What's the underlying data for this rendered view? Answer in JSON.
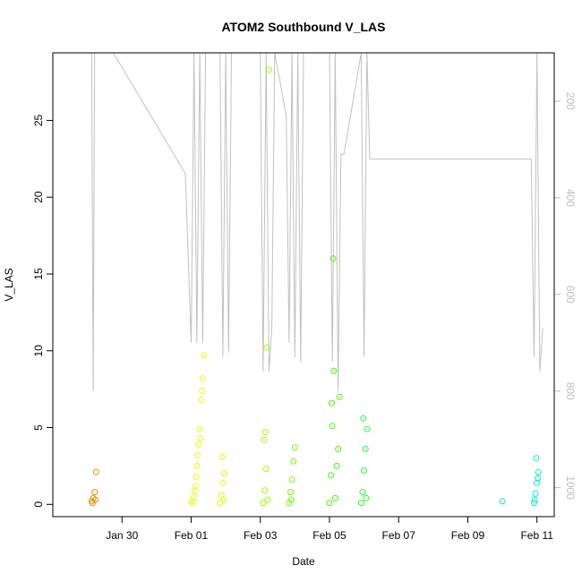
{
  "chart_data": {
    "type": "scatter",
    "title": "ATOM2 Southbound V_LAS",
    "xlabel": "Date",
    "ylabel": "V_LAS",
    "x_axis": {
      "type": "date",
      "ticks": [
        "Jan 30",
        "Feb 01",
        "Feb 03",
        "Feb 05",
        "Feb 07",
        "Feb 09",
        "Feb 11"
      ],
      "tick_values": [
        "2024-01-30",
        "2024-02-01",
        "2024-02-03",
        "2024-02-05",
        "2024-02-07",
        "2024-02-09",
        "2024-02-11"
      ],
      "xlim": [
        "2024-01-28T00:00",
        "2024-02-11T12:00"
      ]
    },
    "y_axis": {
      "ticks": [
        0,
        5,
        10,
        15,
        20,
        25
      ],
      "ylim": [
        -0.8,
        29.4
      ]
    },
    "y2_axis": {
      "ticks": [
        200,
        400,
        600,
        800,
        1000
      ],
      "range": [
        1060,
        100
      ],
      "color": "#bdbdbd"
    },
    "colors": {
      "series_start": "#f28a00",
      "series_mid": "#e6ff00",
      "series_green": "#26ff00",
      "series_end": "#00f0c8",
      "depth_line": "#c0c0c0"
    },
    "series": [
      {
        "color": "#f28a00",
        "points": [
          [
            "2024-01-29T03:00",
            0.2
          ],
          [
            "2024-01-29T04:00",
            0.4
          ],
          [
            "2024-01-29T05:00",
            0.8
          ],
          [
            "2024-01-29T06:00",
            2.1
          ],
          [
            "2024-01-29T03:30",
            0.1
          ],
          [
            "2024-01-29T05:30",
            0.3
          ]
        ]
      },
      {
        "color": "#e6ff00",
        "points": [
          [
            "2024-02-01T01:00",
            0.1
          ],
          [
            "2024-02-01T02:00",
            0.5
          ],
          [
            "2024-02-01T03:00",
            1.2
          ],
          [
            "2024-02-01T04:00",
            2.5
          ],
          [
            "2024-02-01T05:00",
            3.9
          ],
          [
            "2024-02-01T06:00",
            4.9
          ],
          [
            "2024-02-01T07:00",
            6.8
          ],
          [
            "2024-02-01T08:00",
            8.2
          ],
          [
            "2024-02-01T09:00",
            9.7
          ],
          [
            "2024-02-01T02:30",
            0.9
          ],
          [
            "2024-02-01T04:30",
            3.2
          ],
          [
            "2024-02-01T06:30",
            4.3
          ],
          [
            "2024-02-01T07:30",
            7.4
          ],
          [
            "2024-02-01T00:30",
            0.2
          ],
          [
            "2024-02-01T03:30",
            1.8
          ]
        ]
      },
      {
        "color": "#d2ff00",
        "points": [
          [
            "2024-02-01T20:00",
            0.1
          ],
          [
            "2024-02-01T21:00",
            0.6
          ],
          [
            "2024-02-01T22:00",
            1.4
          ],
          [
            "2024-02-01T23:00",
            2.0
          ],
          [
            "2024-02-01T21:30",
            3.1
          ],
          [
            "2024-02-01T22:30",
            0.3
          ]
        ]
      },
      {
        "color": "#9cff00",
        "points": [
          [
            "2024-02-03T02:00",
            0.1
          ],
          [
            "2024-02-03T03:00",
            0.9
          ],
          [
            "2024-02-03T04:00",
            2.3
          ],
          [
            "2024-02-03T02:30",
            4.2
          ],
          [
            "2024-02-03T03:30",
            4.7
          ],
          [
            "2024-02-03T05:00",
            0.3
          ],
          [
            "2024-02-03T06:00",
            28.3
          ],
          [
            "2024-02-03T04:30",
            10.2
          ]
        ]
      },
      {
        "color": "#6cff00",
        "points": [
          [
            "2024-02-03T20:00",
            0.1
          ],
          [
            "2024-02-03T21:00",
            0.8
          ],
          [
            "2024-02-03T22:00",
            1.6
          ],
          [
            "2024-02-03T23:00",
            2.8
          ],
          [
            "2024-02-04T00:00",
            3.7
          ],
          [
            "2024-02-03T21:30",
            0.3
          ]
        ]
      },
      {
        "color": "#40ff00",
        "points": [
          [
            "2024-02-05T00:00",
            0.1
          ],
          [
            "2024-02-05T01:00",
            1.9
          ],
          [
            "2024-02-05T02:00",
            5.1
          ],
          [
            "2024-02-05T01:30",
            6.6
          ],
          [
            "2024-02-05T03:00",
            8.7
          ],
          [
            "2024-02-05T02:30",
            16.0
          ],
          [
            "2024-02-05T05:00",
            2.5
          ],
          [
            "2024-02-05T06:00",
            3.6
          ],
          [
            "2024-02-05T07:00",
            7.0
          ],
          [
            "2024-02-05T04:00",
            0.4
          ]
        ]
      },
      {
        "color": "#20ff30",
        "points": [
          [
            "2024-02-05T22:00",
            0.1
          ],
          [
            "2024-02-05T23:00",
            0.8
          ],
          [
            "2024-02-06T00:00",
            2.2
          ],
          [
            "2024-02-06T01:00",
            3.6
          ],
          [
            "2024-02-06T02:00",
            4.9
          ],
          [
            "2024-02-05T23:30",
            5.6
          ],
          [
            "2024-02-06T01:30",
            0.4
          ]
        ]
      },
      {
        "color": "#00f0a0",
        "points": [
          [
            "2024-02-10T00:00",
            0.2
          ]
        ]
      },
      {
        "color": "#00f0c8",
        "points": [
          [
            "2024-02-10T22:00",
            0.1
          ],
          [
            "2024-02-10T23:00",
            0.7
          ],
          [
            "2024-02-11T00:00",
            1.4
          ],
          [
            "2024-02-11T01:00",
            2.1
          ],
          [
            "2024-02-10T23:30",
            3.0
          ],
          [
            "2024-02-11T00:30",
            1.7
          ],
          [
            "2024-02-10T22:30",
            0.3
          ]
        ]
      }
    ],
    "depth_track": [
      [
        "2024-01-29T00:00",
        100
      ],
      [
        "2024-01-29T03:00",
        100
      ],
      [
        "2024-01-29T04:00",
        800
      ],
      [
        "2024-01-29T05:00",
        100
      ],
      [
        "2024-01-29T18:00",
        100
      ],
      [
        "2024-01-31T20:00",
        350
      ],
      [
        "2024-02-01T00:00",
        700
      ],
      [
        "2024-02-01T02:00",
        100
      ],
      [
        "2024-02-01T04:00",
        700
      ],
      [
        "2024-02-01T06:00",
        100
      ],
      [
        "2024-02-01T08:00",
        700
      ],
      [
        "2024-02-01T10:00",
        100
      ],
      [
        "2024-02-01T20:00",
        100
      ],
      [
        "2024-02-01T22:00",
        730
      ],
      [
        "2024-02-02T00:00",
        100
      ],
      [
        "2024-02-02T02:00",
        720
      ],
      [
        "2024-02-02T04:00",
        100
      ],
      [
        "2024-02-02T16:00",
        100
      ],
      [
        "2024-02-03T00:00",
        100
      ],
      [
        "2024-02-03T02:00",
        760
      ],
      [
        "2024-02-03T04:00",
        100
      ],
      [
        "2024-02-03T06:00",
        760
      ],
      [
        "2024-02-03T08:00",
        670
      ],
      [
        "2024-02-03T10:00",
        100
      ],
      [
        "2024-02-03T18:00",
        230
      ],
      [
        "2024-02-03T20:00",
        700
      ],
      [
        "2024-02-03T22:00",
        100
      ],
      [
        "2024-02-04T00:00",
        730
      ],
      [
        "2024-02-04T02:00",
        100
      ],
      [
        "2024-02-04T04:00",
        740
      ],
      [
        "2024-02-04T06:00",
        100
      ],
      [
        "2024-02-05T00:00",
        100
      ],
      [
        "2024-02-05T02:00",
        740
      ],
      [
        "2024-02-05T04:00",
        100
      ],
      [
        "2024-02-05T06:00",
        800
      ],
      [
        "2024-02-05T08:00",
        310
      ],
      [
        "2024-02-05T10:00",
        310
      ],
      [
        "2024-02-05T22:00",
        100
      ],
      [
        "2024-02-06T00:00",
        730
      ],
      [
        "2024-02-06T02:00",
        100
      ],
      [
        "2024-02-06T04:00",
        320
      ],
      [
        "2024-02-10T20:00",
        320
      ],
      [
        "2024-02-10T22:00",
        730
      ],
      [
        "2024-02-11T00:00",
        100
      ],
      [
        "2024-02-11T02:00",
        760
      ],
      [
        "2024-02-11T04:00",
        670
      ]
    ],
    "grid": false,
    "legend": "none"
  }
}
